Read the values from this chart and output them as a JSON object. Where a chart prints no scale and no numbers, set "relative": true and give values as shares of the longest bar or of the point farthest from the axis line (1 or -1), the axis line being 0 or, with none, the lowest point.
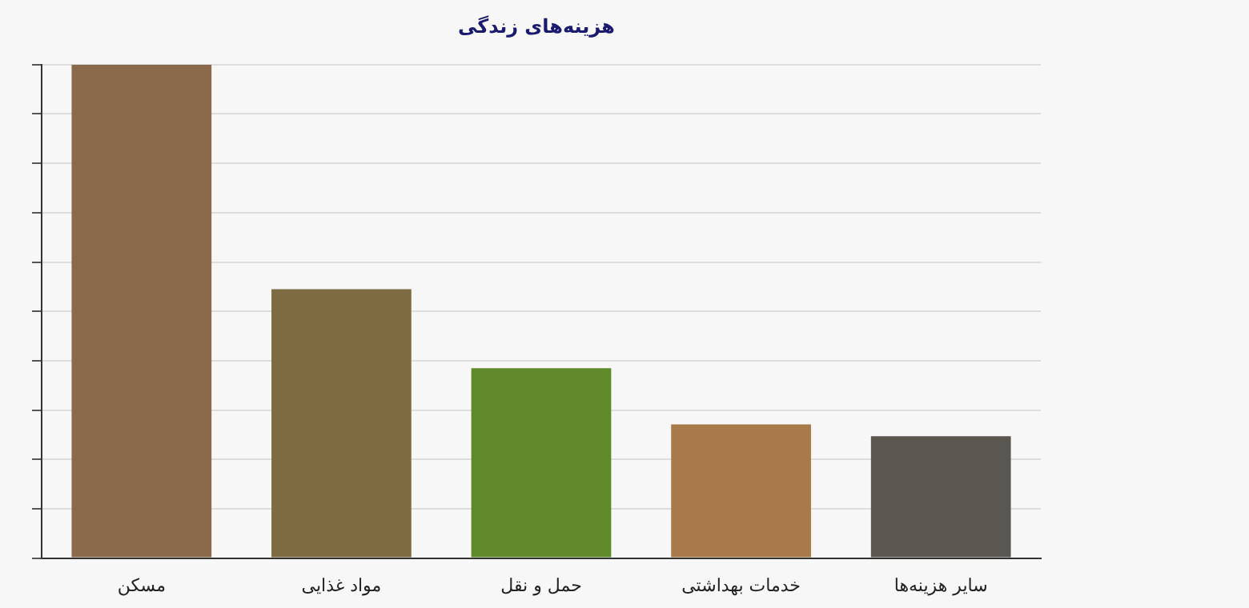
{
  "chart_data": {
    "type": "bar",
    "title": "هزینه‌های زندگی",
    "relative": true,
    "grid": "y",
    "categories": [
      "مسکن",
      "مواد غذایی",
      "حمل و نقل",
      "خدمات بهداشتی",
      "سایر هزینه‌ها"
    ],
    "values": [
      1,
      0.545,
      0.385,
      0.271,
      0.247
    ],
    "colors": [
      "#8a6a4a",
      "#7d6b42",
      "#5e8a2a",
      "#a87a4a",
      "#5a5650"
    ]
  }
}
